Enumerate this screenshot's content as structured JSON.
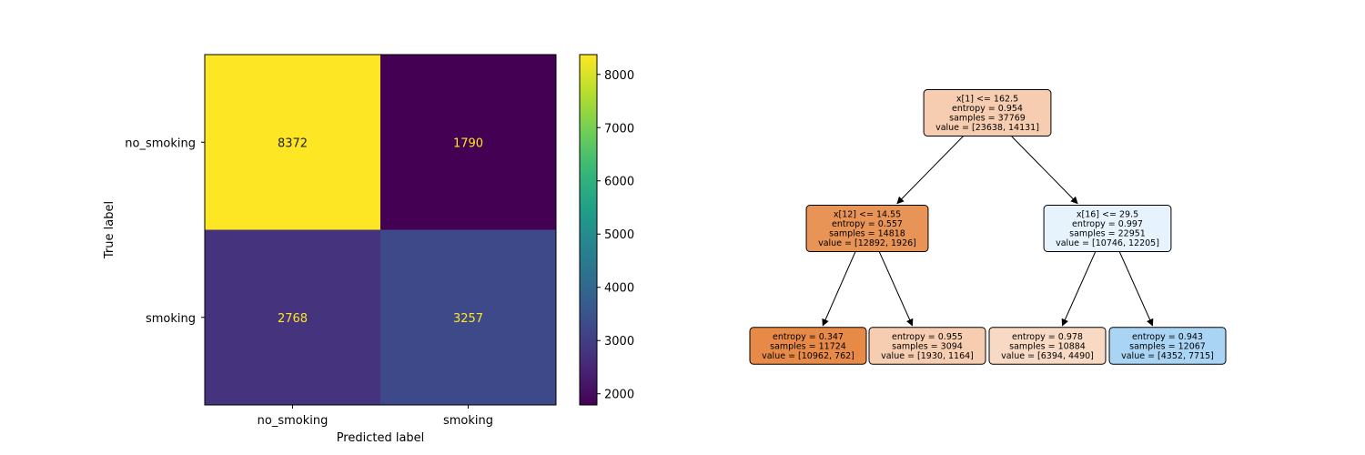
{
  "chart_data": [
    {
      "type": "heatmap",
      "title": "",
      "xlabel": "Predicted label",
      "ylabel": "True label",
      "x_categories": [
        "no_smoking",
        "smoking"
      ],
      "y_categories": [
        "no_smoking",
        "smoking"
      ],
      "values": [
        [
          8372,
          1790
        ],
        [
          2768,
          3257
        ]
      ],
      "colormap": "viridis",
      "colorbar": {
        "range": [
          1790,
          8372
        ],
        "ticks": [
          2000,
          3000,
          4000,
          5000,
          6000,
          7000,
          8000
        ]
      },
      "text_colors": {
        "on_bright": "#222222",
        "on_dark": "#fde725"
      }
    },
    {
      "type": "decision-tree",
      "nodes": [
        {
          "id": 0,
          "lines": [
            "x[1] <= 162.5",
            "entropy = 0.954",
            "samples = 37769",
            "value = [23638, 14131]"
          ],
          "color": "#f6cdb0"
        },
        {
          "id": 1,
          "parent": 0,
          "lines": [
            "x[12] <= 14.55",
            "entropy = 0.557",
            "samples = 14818",
            "value = [12892, 1926]"
          ],
          "color": "#e99457"
        },
        {
          "id": 2,
          "parent": 0,
          "lines": [
            "x[16] <= 29.5",
            "entropy = 0.997",
            "samples = 22951",
            "value = [10746, 12205]"
          ],
          "color": "#e7f3fc"
        },
        {
          "id": 3,
          "parent": 1,
          "lines": [
            "entropy = 0.347",
            "samples = 11724",
            "value = [10962, 762]"
          ],
          "color": "#e78a47"
        },
        {
          "id": 4,
          "parent": 1,
          "lines": [
            "entropy = 0.955",
            "samples = 3094",
            "value = [1930, 1164]"
          ],
          "color": "#f6cdb0"
        },
        {
          "id": 5,
          "parent": 2,
          "lines": [
            "entropy = 0.978",
            "samples = 10884",
            "value = [6394, 4490]"
          ],
          "color": "#f8d9c3"
        },
        {
          "id": 6,
          "parent": 2,
          "lines": [
            "entropy = 0.943",
            "samples = 12067",
            "value = [4352, 7715]"
          ],
          "color": "#a9d4f4"
        }
      ]
    }
  ]
}
